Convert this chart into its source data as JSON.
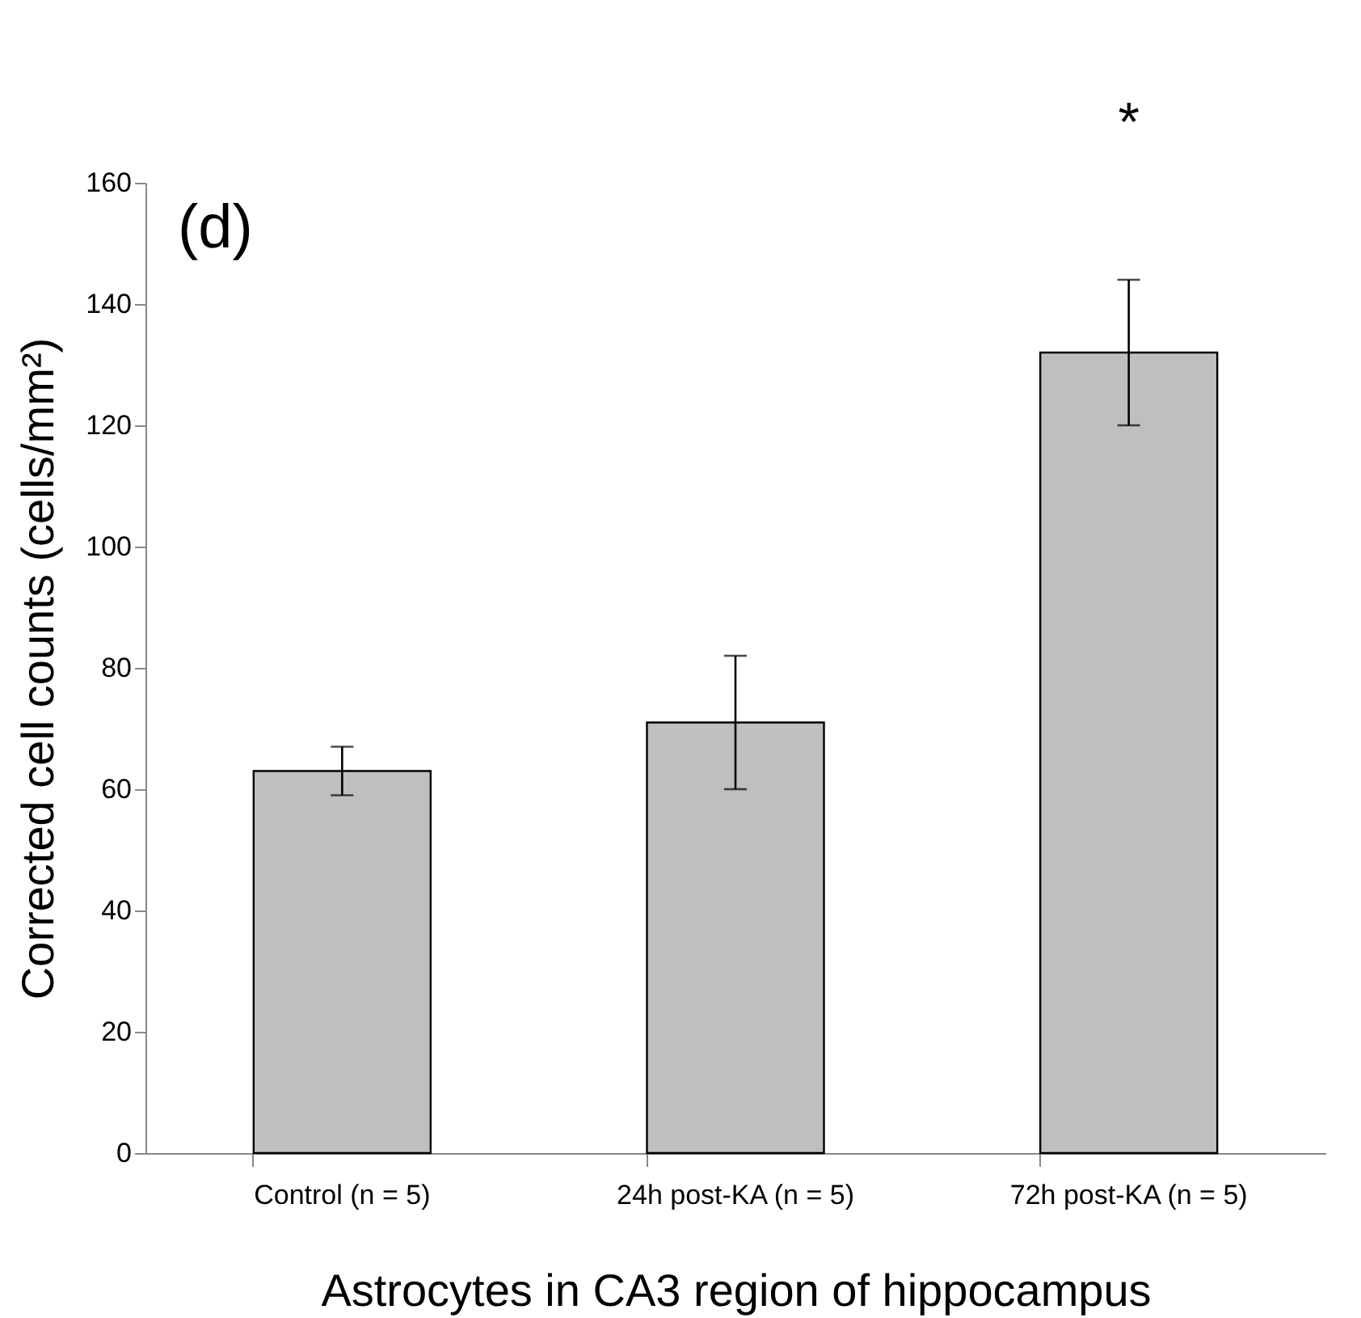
{
  "chart_data": {
    "type": "bar",
    "categories": [
      "Control (n = 5)",
      "24h post-KA (n = 5)",
      "72h post-KA (n = 5)"
    ],
    "values": [
      63,
      71,
      132
    ],
    "errors": [
      4,
      11,
      12
    ],
    "color": "#bfbfbf",
    "xlabel": "Astrocytes in CA3 region of hippocampus",
    "ylabel": "Corrected cell counts (cells/mm²)",
    "ylim": [
      0,
      160
    ],
    "yticks": [
      0,
      20,
      40,
      60,
      80,
      100,
      120,
      140,
      160
    ],
    "annotations": [
      "(d)",
      "*"
    ],
    "grid": false
  }
}
